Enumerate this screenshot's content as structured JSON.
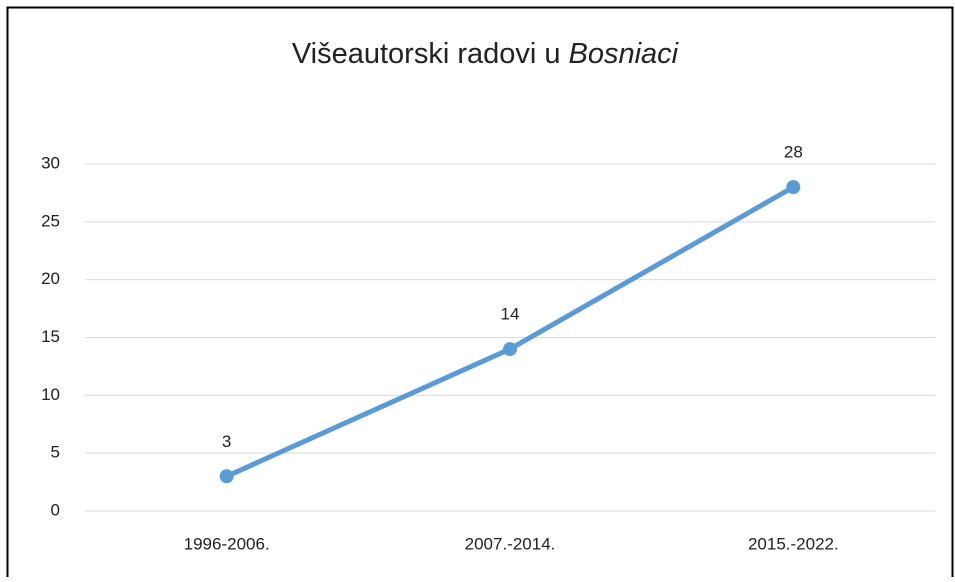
{
  "chart_data": {
    "type": "line",
    "title": [
      {
        "text": "Višeautorski radovi u",
        "italic": false
      },
      {
        "text": "Bosniaci",
        "italic": true
      }
    ],
    "categories": [
      "1996-2006.",
      "2007.-2014.",
      "2015.-2022."
    ],
    "series": [
      {
        "color": "#5b9bd5",
        "values": [
          3,
          14,
          28
        ]
      }
    ],
    "ylim": [
      0,
      30
    ],
    "yticks": [
      0,
      5,
      10,
      15,
      20,
      25,
      30
    ],
    "grid": true
  }
}
